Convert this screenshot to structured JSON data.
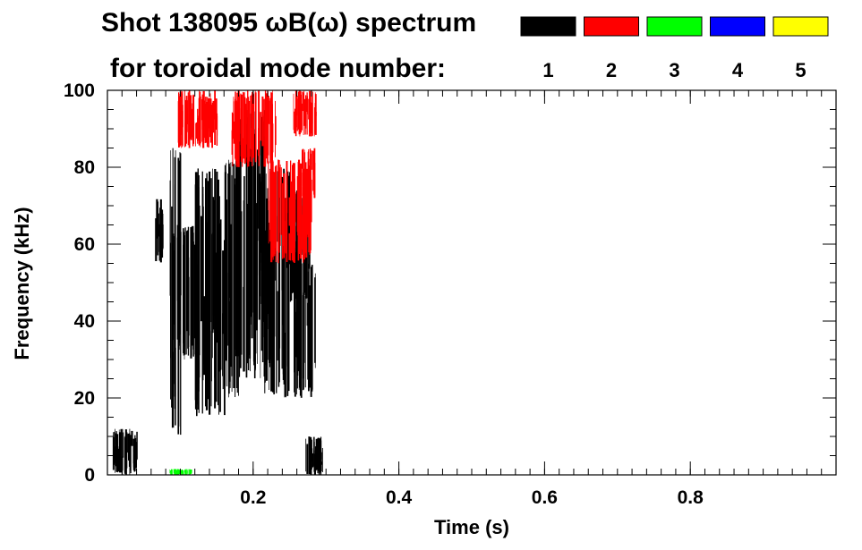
{
  "chart_data": {
    "type": "heatmap",
    "title_line1": "Shot 138095 ωB(ω) spectrum",
    "title_line2": "for toroidal mode number:",
    "xlabel": "Time (s)",
    "ylabel": "Frequency (kHz)",
    "xlim": [
      0.0,
      1.0
    ],
    "ylim": [
      0,
      100
    ],
    "x_ticks": [
      0.2,
      0.4,
      0.6,
      0.8
    ],
    "x_tick_labels": [
      "0.2",
      "0.4",
      "0.6",
      "0.8"
    ],
    "x_minor_step": 0.02,
    "y_ticks": [
      0,
      20,
      40,
      60,
      80,
      100
    ],
    "y_tick_labels": [
      "0",
      "20",
      "40",
      "60",
      "80",
      "100"
    ],
    "y_minor_step": 5,
    "legend": [
      {
        "mode": "1",
        "label": "1",
        "color": "#000000"
      },
      {
        "mode": "2",
        "label": "2",
        "color": "#ff0000"
      },
      {
        "mode": "3",
        "label": "3",
        "color": "#00ff00"
      },
      {
        "mode": "4",
        "label": "4",
        "color": "#0000ff"
      },
      {
        "mode": "5",
        "label": "5",
        "color": "#ffff00"
      }
    ],
    "activity_regions": [
      {
        "mode": 1,
        "t": [
          0.065,
          0.075
        ],
        "f": [
          55,
          72
        ]
      },
      {
        "mode": 1,
        "t": [
          0.085,
          0.1
        ],
        "f": [
          10,
          85
        ]
      },
      {
        "mode": 1,
        "t": [
          0.095,
          0.12
        ],
        "f": [
          30,
          65
        ]
      },
      {
        "mode": 1,
        "t": [
          0.12,
          0.16
        ],
        "f": [
          15,
          80
        ]
      },
      {
        "mode": 1,
        "t": [
          0.16,
          0.18
        ],
        "f": [
          20,
          82
        ]
      },
      {
        "mode": 1,
        "t": [
          0.175,
          0.215
        ],
        "f": [
          25,
          95
        ]
      },
      {
        "mode": 1,
        "t": [
          0.215,
          0.25
        ],
        "f": [
          20,
          80
        ]
      },
      {
        "mode": 1,
        "t": [
          0.248,
          0.278
        ],
        "f": [
          45,
          75
        ]
      },
      {
        "mode": 1,
        "t": [
          0.255,
          0.285
        ],
        "f": [
          20,
          55
        ]
      },
      {
        "mode": 1,
        "t": [
          0.27,
          0.295
        ],
        "f": [
          0,
          10
        ]
      },
      {
        "mode": 1,
        "t": [
          0.005,
          0.04
        ],
        "f": [
          0,
          12
        ]
      },
      {
        "mode": 2,
        "t": [
          0.095,
          0.15
        ],
        "f": [
          85,
          100
        ]
      },
      {
        "mode": 2,
        "t": [
          0.17,
          0.23
        ],
        "f": [
          80,
          100
        ]
      },
      {
        "mode": 2,
        "t": [
          0.22,
          0.28
        ],
        "f": [
          55,
          82
        ]
      },
      {
        "mode": 2,
        "t": [
          0.255,
          0.285
        ],
        "f": [
          88,
          100
        ]
      },
      {
        "mode": 2,
        "t": [
          0.265,
          0.285
        ],
        "f": [
          72,
          85
        ]
      },
      {
        "mode": 3,
        "t": [
          0.085,
          0.115
        ],
        "f": [
          0,
          1.5
        ]
      }
    ]
  }
}
